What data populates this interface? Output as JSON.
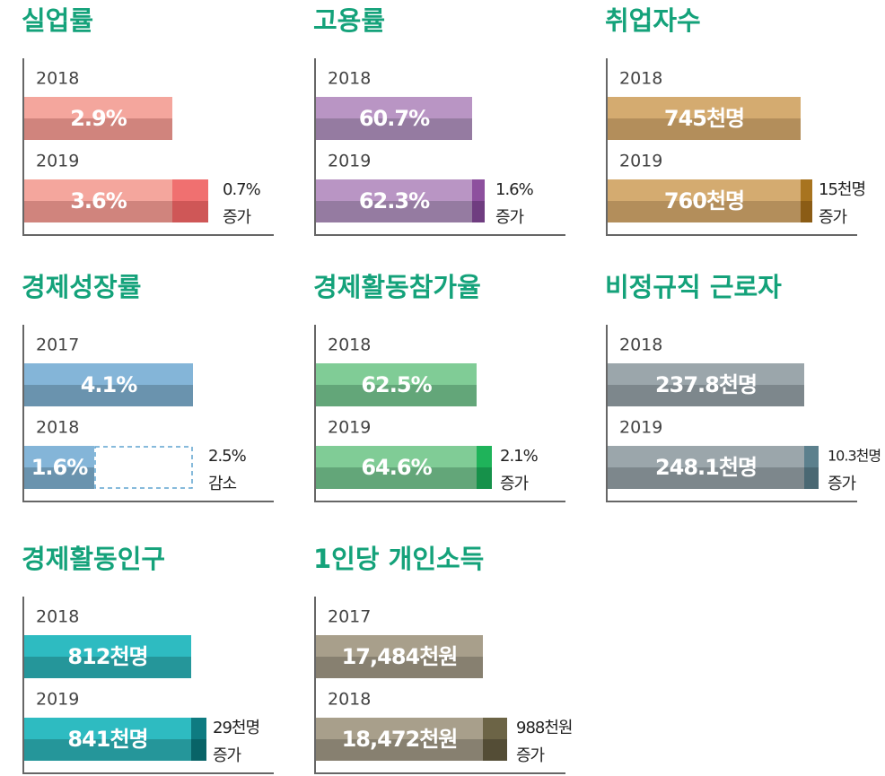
{
  "panels": [
    {
      "title": "실업률",
      "rows": [
        {
          "year": "2018",
          "label": "2.9%"
        },
        {
          "year": "2019",
          "label": "3.6%"
        }
      ],
      "change": {
        "amount": "0.7%",
        "word": "증가"
      }
    },
    {
      "title": "고용률",
      "rows": [
        {
          "year": "2018",
          "label": "60.7%"
        },
        {
          "year": "2019",
          "label": "62.3%"
        }
      ],
      "change": {
        "amount": "1.6%",
        "word": "증가"
      }
    },
    {
      "title": "취업자수",
      "rows": [
        {
          "year": "2018",
          "label": "745천명"
        },
        {
          "year": "2019",
          "label": "760천명"
        }
      ],
      "change": {
        "amount": "15천명",
        "word": "증가"
      }
    },
    {
      "title": "경제성장률",
      "rows": [
        {
          "year": "2017",
          "label": "4.1%"
        },
        {
          "year": "2018",
          "label": "1.6%"
        }
      ],
      "change": {
        "amount": "2.5%",
        "word": "감소"
      }
    },
    {
      "title": "경제활동참가율",
      "rows": [
        {
          "year": "2018",
          "label": "62.5%"
        },
        {
          "year": "2019",
          "label": "64.6%"
        }
      ],
      "change": {
        "amount": "2.1%",
        "word": "증가"
      }
    },
    {
      "title": "비정규직 근로자",
      "rows": [
        {
          "year": "2018",
          "label": "237.8천명"
        },
        {
          "year": "2019",
          "label": "248.1천명"
        }
      ],
      "change": {
        "amount": "10.3천명",
        "word": "증가"
      }
    },
    {
      "title": "경제활동인구",
      "rows": [
        {
          "year": "2018",
          "label": "812천명"
        },
        {
          "year": "2019",
          "label": "841천명"
        }
      ],
      "change": {
        "amount": "29천명",
        "word": "증가"
      }
    },
    {
      "title": "1인당 개인소득",
      "rows": [
        {
          "year": "2017",
          "label": "17,484천원"
        },
        {
          "year": "2018",
          "label": "18,472천원"
        }
      ],
      "change": {
        "amount": "988천원",
        "word": "증가"
      }
    }
  ]
}
